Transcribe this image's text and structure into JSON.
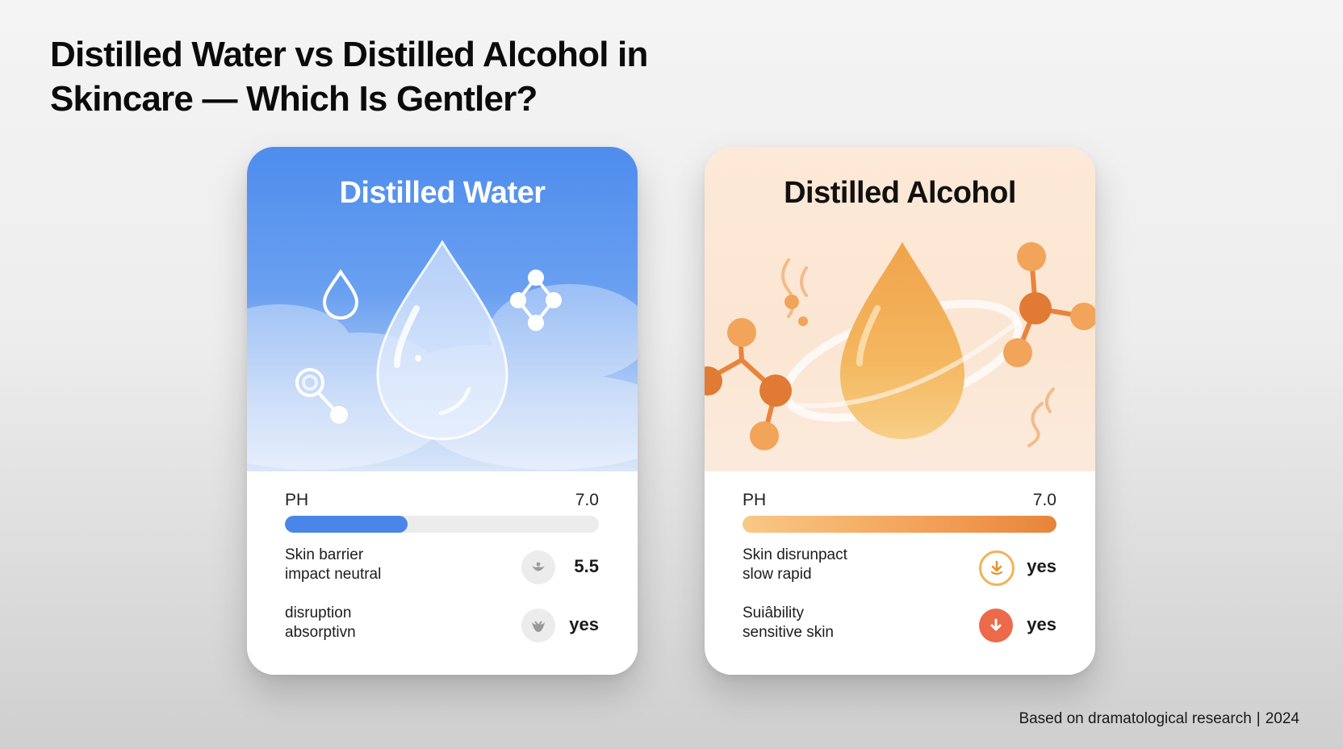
{
  "title": {
    "line1": "Distilled Water vs Distilled Alcohol in",
    "line2": "Skincare — Which Is Gentler?"
  },
  "cards": [
    {
      "title": "Distilled Water",
      "ph_label": "PH",
      "ph_value": "7.0",
      "ph_bar_fill_fraction": 0.39,
      "accent_color": "#4a86e8",
      "rows": [
        {
          "label_line1": "Skin barrier",
          "label_line2": "impact neutral",
          "icon": "neutral-drop-icon",
          "value": "5.5"
        },
        {
          "label_line1": "disruption",
          "label_line2": "absorptivn",
          "icon": "neutral-drop-icon",
          "value": "yes"
        }
      ]
    },
    {
      "title": "Distilled Alcohol",
      "ph_label": "PH",
      "ph_value": "7.0",
      "ph_bar_fill_fraction": 1.0,
      "accent_color": "#e8843c",
      "rows": [
        {
          "label_line1": "Skin disrunpact",
          "label_line2": "slow rapid",
          "icon": "down-arrow-outline-icon",
          "value": "yes"
        },
        {
          "label_line1": "Suiâbility",
          "label_line2": "sensitive skin",
          "icon": "down-arrow-filled-icon",
          "value": "yes"
        }
      ]
    }
  ],
  "footer": {
    "source": "Based on dramatological research",
    "year": "2024"
  }
}
